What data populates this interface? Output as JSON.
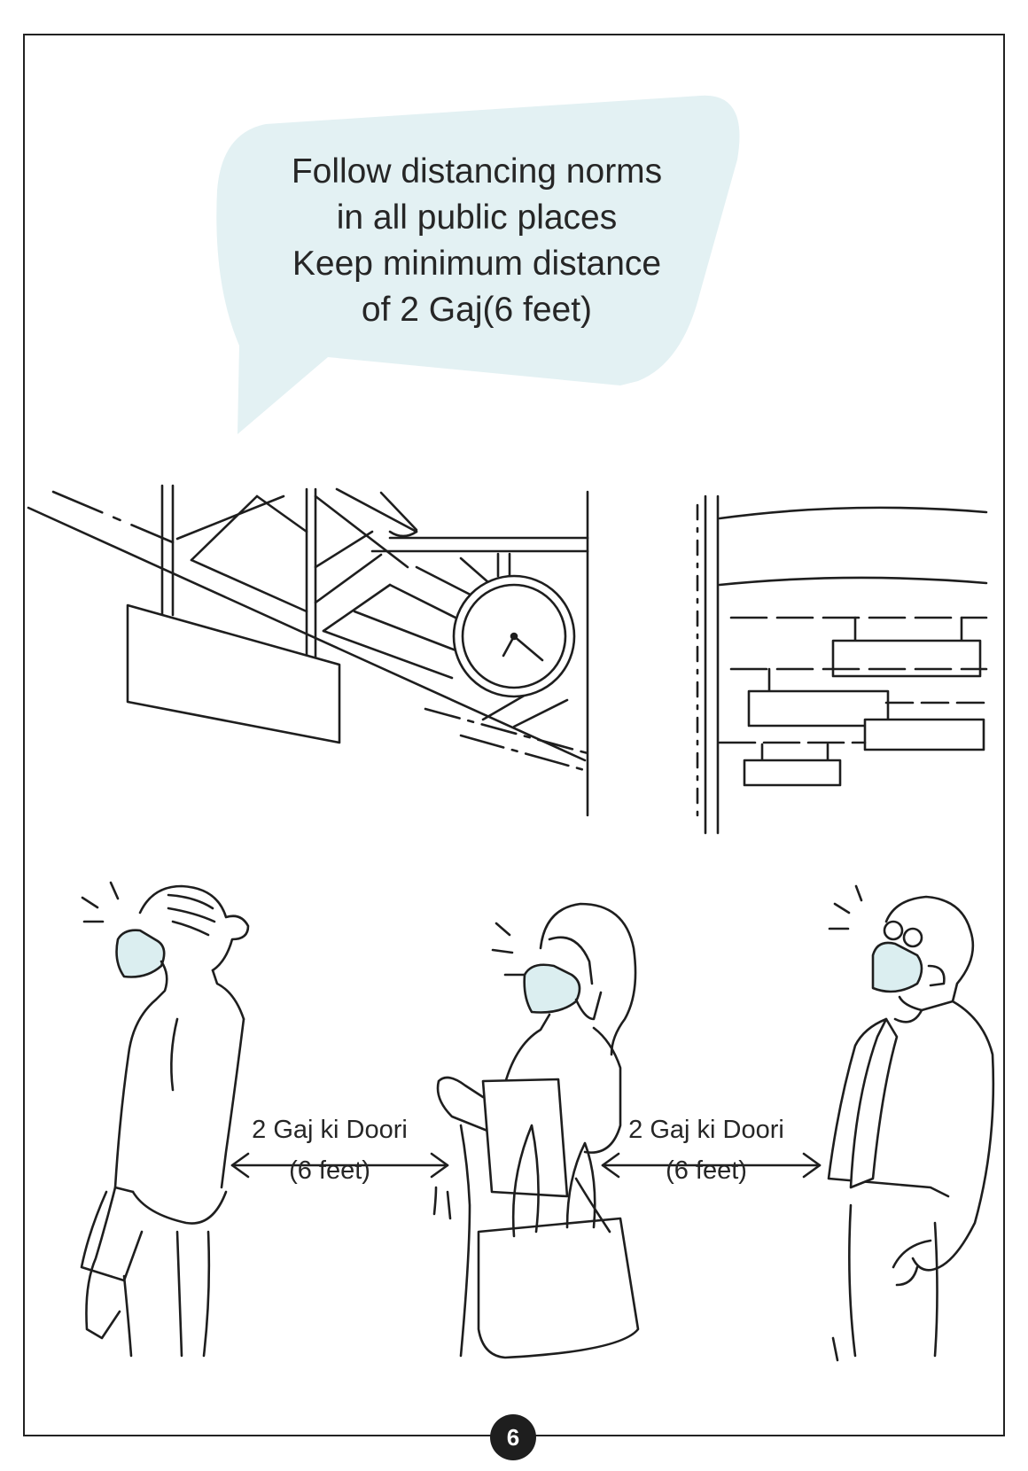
{
  "bubble": {
    "lines": [
      "Follow distancing norms",
      "in all public places",
      "Keep minimum distance",
      "of 2 Gaj(6 feet)"
    ]
  },
  "distance_labels": [
    {
      "line1": "2 Gaj ki Doori",
      "line2": "(6 feet)"
    },
    {
      "line1": "2 Gaj ki Doori",
      "line2": "(6 feet)"
    }
  ],
  "page_number": "6",
  "colors": {
    "bubble_fill": "#e3f1f3",
    "mask_fill": "#dbeef0",
    "line": "#1e1e1e"
  }
}
